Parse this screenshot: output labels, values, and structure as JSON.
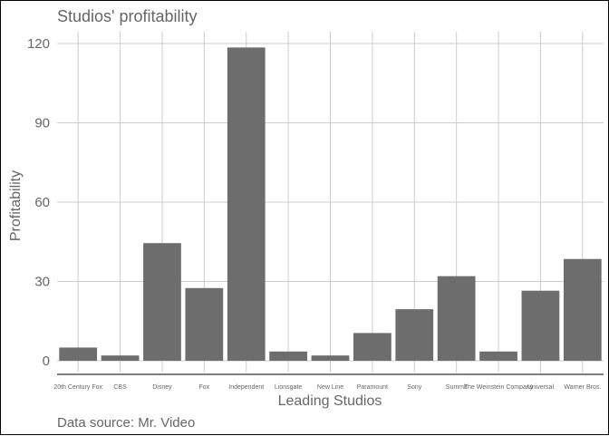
{
  "chart_data": {
    "type": "bar",
    "title": "Studios' profitability",
    "xlabel": "Leading Studios",
    "ylabel": "Profitability",
    "caption": "Data source: Mr. Video",
    "categories": [
      "20th Century Fox",
      "CBS",
      "Disney",
      "Fox",
      "Independent",
      "Lionsgate",
      "New Line",
      "Paramount",
      "Sony",
      "Summit",
      "The Weinstein Company",
      "Universal",
      "Warner Bros."
    ],
    "values": [
      5.0,
      2.0,
      44.5,
      27.5,
      118.5,
      3.5,
      2.0,
      10.5,
      19.5,
      32.0,
      3.5,
      26.5,
      38.5
    ],
    "ylim": [
      -5,
      124
    ],
    "yticks": [
      0,
      30,
      60,
      90,
      120
    ],
    "grid": true,
    "bar_color": "#6d6d6d"
  },
  "colors": {
    "grid": "#cccccc",
    "text": "#666666",
    "axis_line": "#000000"
  }
}
